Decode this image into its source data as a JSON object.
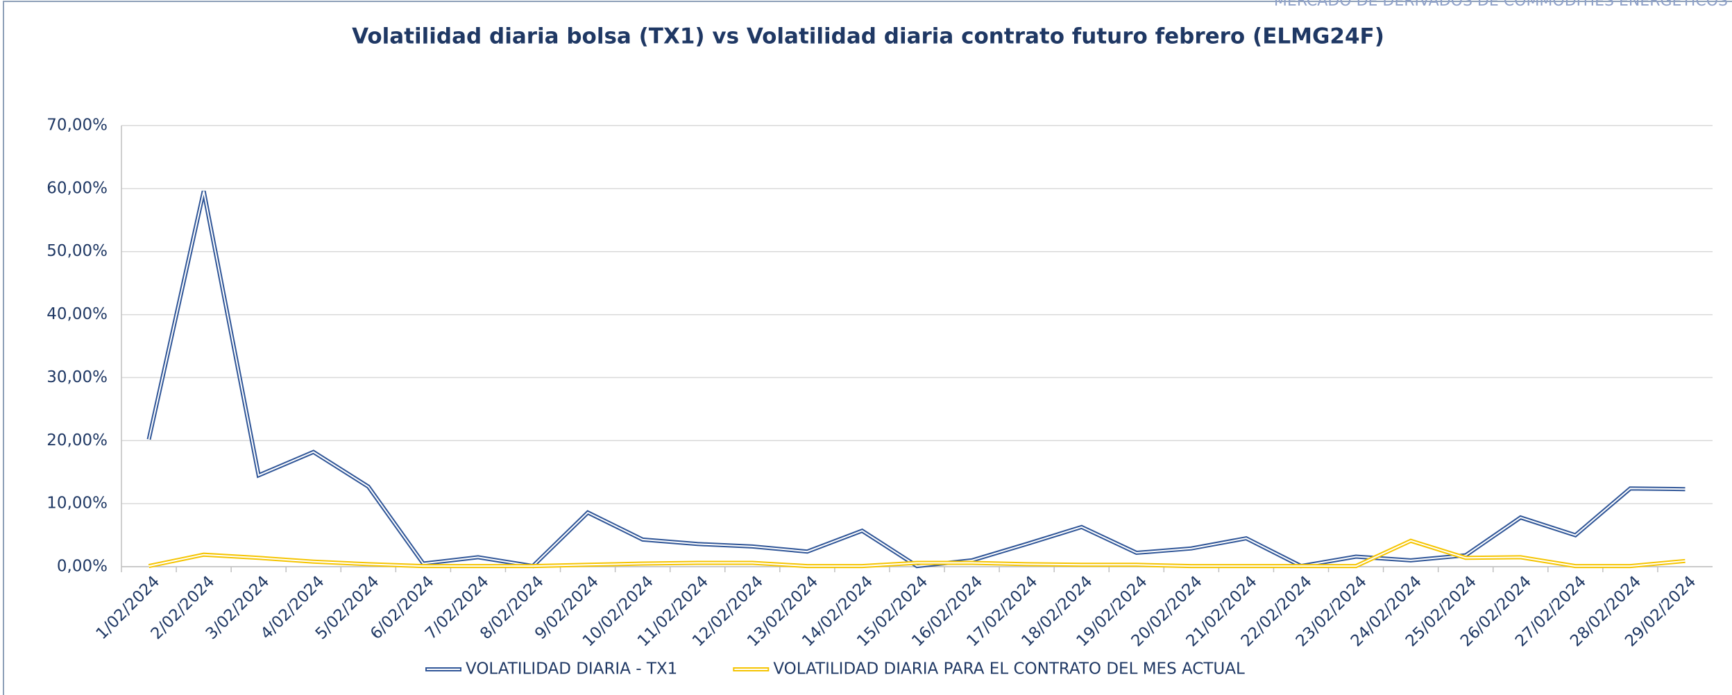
{
  "chart_data": {
    "type": "line",
    "header": "MERCADO DE DERIVADOS DE COMMODITIES ENERGÉTICOS",
    "title": "Volatilidad diaria bolsa (TX1) vs Volatilidad diaria contrato futuro febrero (ELMG24F)",
    "categories": [
      "1/02/2024",
      "2/02/2024",
      "3/02/2024",
      "4/02/2024",
      "5/02/2024",
      "6/02/2024",
      "7/02/2024",
      "8/02/2024",
      "9/02/2024",
      "10/02/2024",
      "11/02/2024",
      "12/02/2024",
      "13/02/2024",
      "14/02/2024",
      "15/02/2024",
      "16/02/2024",
      "17/02/2024",
      "18/02/2024",
      "19/02/2024",
      "20/02/2024",
      "21/02/2024",
      "22/02/2024",
      "23/02/2024",
      "24/02/2024",
      "25/02/2024",
      "26/02/2024",
      "27/02/2024",
      "28/02/2024",
      "29/02/2024"
    ],
    "series": [
      {
        "name": "VOLATILIDAD DIARIA - TX1",
        "color": "#2f5597",
        "values": [
          20.2,
          59.6,
          14.5,
          18.2,
          12.7,
          0.5,
          1.5,
          0.1,
          8.6,
          4.3,
          3.6,
          3.2,
          2.4,
          5.7,
          0.1,
          1.0,
          3.6,
          6.3,
          2.2,
          2.9,
          4.5,
          0.1,
          1.6,
          1.0,
          1.8,
          7.8,
          5.0,
          12.4,
          12.3
        ]
      },
      {
        "name": "VOLATILIDAD DIARIA PARA EL CONTRATO DEL MES ACTUAL",
        "color": "#f5c400",
        "values": [
          0.1,
          1.9,
          1.4,
          0.8,
          0.4,
          0.1,
          0.1,
          0.1,
          0.3,
          0.5,
          0.6,
          0.6,
          0.1,
          0.1,
          0.6,
          0.6,
          0.4,
          0.3,
          0.3,
          0.1,
          0.1,
          0.1,
          0.1,
          4.1,
          1.4,
          1.5,
          0.1,
          0.1,
          0.9
        ]
      }
    ],
    "ylim": [
      0,
      70
    ],
    "yticks": [
      {
        "value": 0,
        "label": "0,00%"
      },
      {
        "value": 10,
        "label": "10,00%"
      },
      {
        "value": 20,
        "label": "20,00%"
      },
      {
        "value": 30,
        "label": "30,00%"
      },
      {
        "value": 40,
        "label": "40,00%"
      },
      {
        "value": 50,
        "label": "50,00%"
      },
      {
        "value": 60,
        "label": "60,00%"
      },
      {
        "value": 70,
        "label": "70,00%"
      }
    ],
    "grid": true,
    "legend": "bottom"
  }
}
